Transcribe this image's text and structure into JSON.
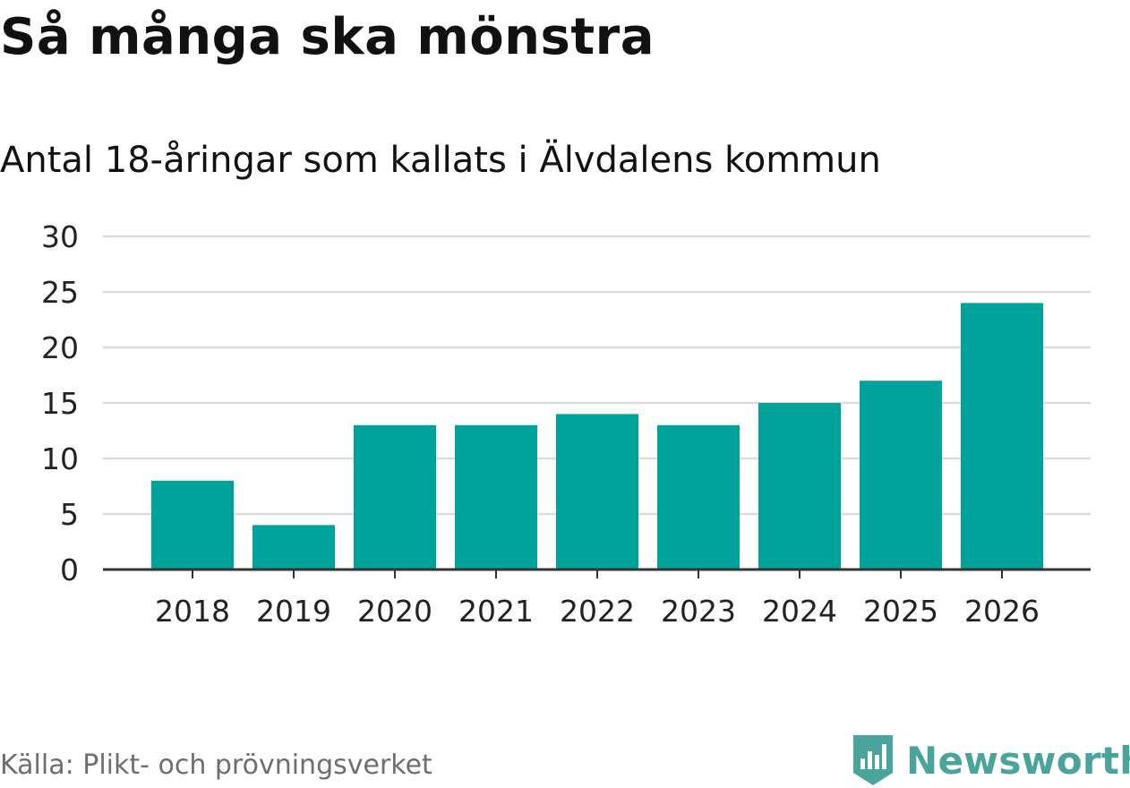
{
  "title": "Så många ska mönstra",
  "subtitle": "Antal 18-åringar som kallats i Älvdalens kommun",
  "source": "Källa: Plikt- och prövningsverket",
  "brand": {
    "name": "Newsworthy",
    "icon": "newsworthy-logo-icon",
    "color": "#4aa49b"
  },
  "colors": {
    "bar": "#00a39a",
    "grid": "#dcdcdc",
    "axis": "#333333",
    "tick_text": "#222222"
  },
  "chart_data": {
    "type": "bar",
    "title": "Så många ska mönstra",
    "subtitle": "Antal 18-åringar som kallats i Älvdalens kommun",
    "categories": [
      "2018",
      "2019",
      "2020",
      "2021",
      "2022",
      "2023",
      "2024",
      "2025",
      "2026"
    ],
    "values": [
      8,
      4,
      13,
      13,
      14,
      13,
      15,
      17,
      24
    ],
    "ylim": [
      0,
      30
    ],
    "yticks": [
      0,
      5,
      10,
      15,
      20,
      25,
      30
    ],
    "grid": true,
    "legend": "none"
  }
}
